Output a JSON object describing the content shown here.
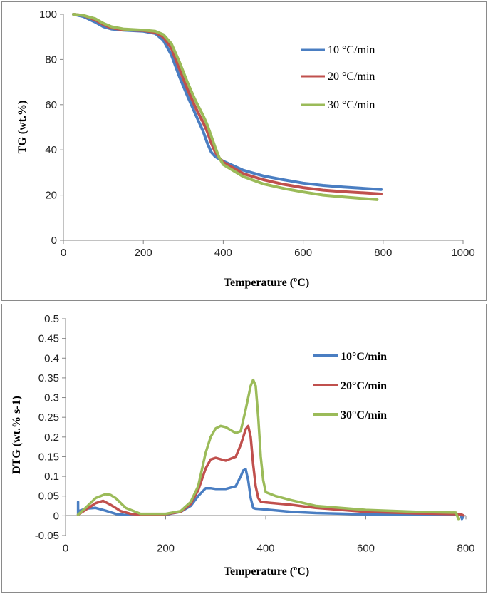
{
  "chart_data": [
    {
      "type": "line",
      "title": "",
      "xlabel": "Temperature (ºC)",
      "ylabel": "TG (wt.%)",
      "xlim": [
        0,
        1000
      ],
      "ylim": [
        0,
        100
      ],
      "xticks": [
        0,
        200,
        400,
        600,
        800,
        1000
      ],
      "yticks": [
        0,
        20,
        40,
        60,
        80,
        100
      ],
      "tick_labels_x": [
        "0",
        "200",
        "400",
        "600",
        "800",
        "1000"
      ],
      "tick_labels_y": [
        "0",
        "20",
        "40",
        "60",
        "80",
        "100"
      ],
      "legend_position": "top-right",
      "series": [
        {
          "name": "10 °C/min",
          "color": "#4a7ec2",
          "x": [
            25,
            50,
            80,
            100,
            120,
            150,
            200,
            230,
            250,
            270,
            290,
            310,
            330,
            350,
            360,
            370,
            380,
            390,
            400,
            450,
            500,
            550,
            600,
            650,
            700,
            750,
            795
          ],
          "y": [
            100,
            99,
            96.5,
            94.5,
            93.5,
            93,
            92.5,
            91.5,
            88.5,
            82,
            72.5,
            64,
            56,
            48,
            43,
            39,
            37,
            36,
            35,
            31,
            28.5,
            26.8,
            25.3,
            24.3,
            23.6,
            23,
            22.5
          ]
        },
        {
          "name": "20 °C/min",
          "color": "#c0504d",
          "x": [
            25,
            50,
            80,
            100,
            120,
            150,
            200,
            230,
            250,
            270,
            290,
            310,
            330,
            350,
            360,
            370,
            380,
            390,
            400,
            450,
            500,
            550,
            600,
            650,
            700,
            750,
            795
          ],
          "y": [
            100,
            99.5,
            97.5,
            95.5,
            94,
            93.2,
            92.8,
            92,
            90,
            85,
            76,
            67,
            59,
            52,
            48,
            43,
            39,
            36.5,
            34.5,
            29.5,
            26.8,
            24.8,
            23.3,
            22.2,
            21.5,
            21,
            20.5
          ]
        },
        {
          "name": "30 °C/min",
          "color": "#9bbb59",
          "x": [
            25,
            50,
            80,
            100,
            120,
            150,
            200,
            230,
            250,
            270,
            290,
            310,
            330,
            350,
            360,
            370,
            380,
            390,
            400,
            450,
            500,
            550,
            600,
            650,
            700,
            750,
            785
          ],
          "y": [
            100,
            99.5,
            98,
            96,
            94.5,
            93.5,
            93,
            92.5,
            91,
            87,
            79,
            70,
            62,
            55,
            51,
            46,
            41,
            36.5,
            33.5,
            28.2,
            25,
            23,
            21.4,
            20,
            19.2,
            18.5,
            18
          ]
        }
      ]
    },
    {
      "type": "line",
      "title": "",
      "xlabel": "Temperature (ºC)",
      "ylabel": "DTG (wt.% s-1)",
      "xlim": [
        0,
        800
      ],
      "ylim": [
        -0.05,
        0.5
      ],
      "xticks": [
        0,
        200,
        400,
        600,
        800
      ],
      "yticks": [
        -0.05,
        0,
        0.05,
        0.1,
        0.15,
        0.2,
        0.25,
        0.3,
        0.35,
        0.4,
        0.45,
        0.5
      ],
      "tick_labels_x": [
        "0",
        "200",
        "400",
        "600",
        "800"
      ],
      "tick_labels_y": [
        "-0.05",
        "0",
        "0.05",
        "0.1",
        "0.15",
        "0.2",
        "0.25",
        "0.3",
        "0.35",
        "0.4",
        "0.45",
        "0.5"
      ],
      "legend_position": "top-right",
      "series": [
        {
          "name": "10°C/min",
          "color": "#4a7ec2",
          "x": [
            25,
            25,
            27,
            40,
            60,
            80,
            100,
            120,
            150,
            200,
            230,
            250,
            265,
            280,
            290,
            300,
            320,
            340,
            350,
            355,
            360,
            365,
            370,
            375,
            380,
            400,
            450,
            500,
            600,
            700,
            790,
            792,
            795
          ],
          "y": [
            0.035,
            0.005,
            0.012,
            0.018,
            0.02,
            0.013,
            0.005,
            0.002,
            0.002,
            0.003,
            0.01,
            0.025,
            0.05,
            0.07,
            0.07,
            0.068,
            0.068,
            0.075,
            0.1,
            0.115,
            0.118,
            0.09,
            0.045,
            0.02,
            0.018,
            0.016,
            0.01,
            0.007,
            0.004,
            0.003,
            0.002,
            -0.008,
            -0.002
          ]
        },
        {
          "name": "20°C/min",
          "color": "#c0504d",
          "x": [
            25,
            40,
            60,
            75,
            90,
            110,
            130,
            150,
            200,
            230,
            250,
            265,
            280,
            290,
            300,
            320,
            340,
            350,
            360,
            365,
            370,
            375,
            380,
            385,
            390,
            400,
            450,
            500,
            600,
            700,
            790,
            795
          ],
          "y": [
            0.003,
            0.015,
            0.032,
            0.038,
            0.028,
            0.012,
            0.005,
            0.003,
            0.004,
            0.01,
            0.03,
            0.065,
            0.12,
            0.143,
            0.147,
            0.14,
            0.15,
            0.18,
            0.22,
            0.228,
            0.2,
            0.13,
            0.075,
            0.045,
            0.036,
            0.034,
            0.028,
            0.02,
            0.01,
            0.006,
            0.004,
            0.001
          ]
        },
        {
          "name": "30°C/min",
          "color": "#9bbb59",
          "x": [
            25,
            40,
            60,
            80,
            90,
            100,
            120,
            150,
            200,
            230,
            250,
            265,
            280,
            290,
            300,
            310,
            320,
            340,
            350,
            360,
            370,
            375,
            380,
            385,
            390,
            395,
            400,
            420,
            450,
            500,
            600,
            700,
            780,
            785
          ],
          "y": [
            0.003,
            0.02,
            0.045,
            0.055,
            0.053,
            0.045,
            0.02,
            0.005,
            0.005,
            0.012,
            0.035,
            0.075,
            0.16,
            0.2,
            0.222,
            0.228,
            0.225,
            0.21,
            0.215,
            0.27,
            0.33,
            0.345,
            0.33,
            0.25,
            0.15,
            0.09,
            0.06,
            0.05,
            0.04,
            0.025,
            0.015,
            0.01,
            0.008,
            -0.008
          ]
        }
      ]
    }
  ]
}
